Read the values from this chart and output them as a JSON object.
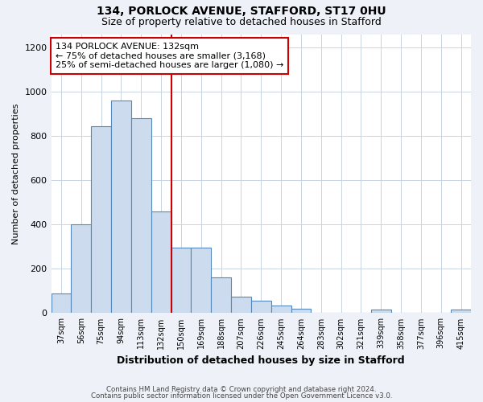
{
  "title1": "134, PORLOCK AVENUE, STAFFORD, ST17 0HU",
  "title2": "Size of property relative to detached houses in Stafford",
  "xlabel": "Distribution of detached houses by size in Stafford",
  "ylabel": "Number of detached properties",
  "categories": [
    "37sqm",
    "56sqm",
    "75sqm",
    "94sqm",
    "113sqm",
    "132sqm",
    "150sqm",
    "169sqm",
    "188sqm",
    "207sqm",
    "226sqm",
    "245sqm",
    "264sqm",
    "283sqm",
    "302sqm",
    "321sqm",
    "339sqm",
    "358sqm",
    "377sqm",
    "396sqm",
    "415sqm"
  ],
  "values": [
    90,
    400,
    845,
    960,
    880,
    460,
    295,
    295,
    160,
    75,
    55,
    35,
    20,
    0,
    0,
    0,
    15,
    0,
    0,
    0,
    15
  ],
  "bar_color": "#ccdcee",
  "bar_edge_color": "#5588bb",
  "marker_index": 5,
  "marker_color": "#cc0000",
  "annotation_line1": "134 PORLOCK AVENUE: 132sqm",
  "annotation_line2": "← 75% of detached houses are smaller (3,168)",
  "annotation_line3": "25% of semi-detached houses are larger (1,080) →",
  "annotation_box_color": "#ffffff",
  "annotation_box_edge": "#cc0000",
  "ylim": [
    0,
    1260
  ],
  "yticks": [
    0,
    200,
    400,
    600,
    800,
    1000,
    1200
  ],
  "footer1": "Contains HM Land Registry data © Crown copyright and database right 2024.",
  "footer2": "Contains public sector information licensed under the Open Government Licence v3.0.",
  "bg_color": "#eef2f8",
  "plot_bg_color": "#ffffff",
  "grid_color": "#c8d4e0"
}
